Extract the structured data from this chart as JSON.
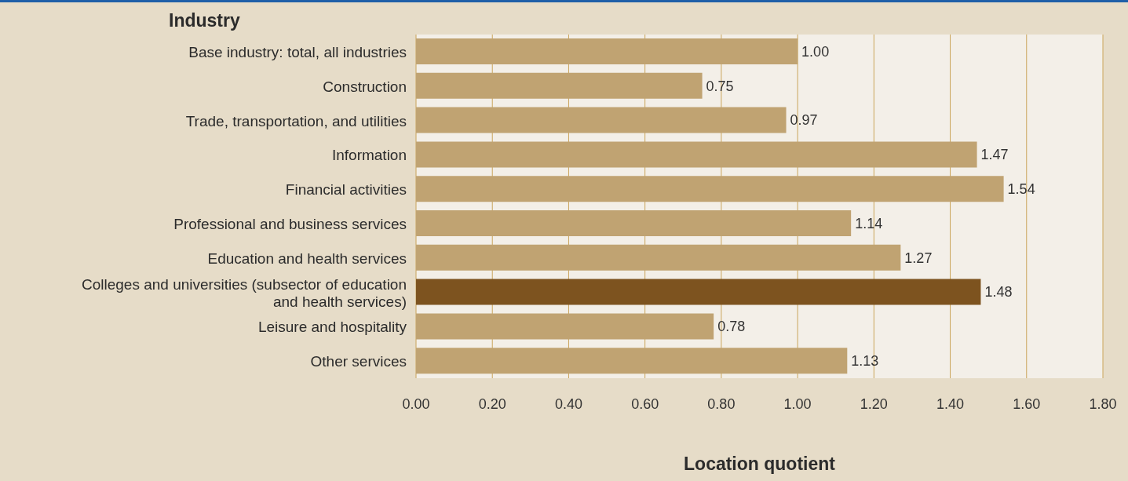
{
  "chart_data": {
    "type": "bar",
    "orientation": "horizontal",
    "ylabel": "Industry",
    "xlabel": "Location quotient",
    "categories": [
      "Base industry: total, all industries",
      "Construction",
      "Trade, transportation, and utilities",
      "Information",
      "Financial activities",
      "Professional and business services",
      "Education and health services",
      "Colleges and universities (subsector of education and health services)",
      "Leisure and hospitality",
      "Other services"
    ],
    "values": [
      1.0,
      0.75,
      0.97,
      1.47,
      1.54,
      1.14,
      1.27,
      1.48,
      0.78,
      1.13
    ],
    "value_labels": [
      "1.00",
      "0.75",
      "0.97",
      "1.47",
      "1.54",
      "1.14",
      "1.27",
      "1.48",
      "0.78",
      "1.13"
    ],
    "colors": [
      "#c0a372",
      "#c0a372",
      "#c0a372",
      "#c0a372",
      "#c0a372",
      "#c0a372",
      "#c0a372",
      "#7d531f",
      "#c0a372",
      "#c0a372"
    ],
    "xlim": [
      0,
      1.8
    ],
    "xticks": [
      {
        "value": 0,
        "label": "0.00"
      },
      {
        "value": 0.2,
        "label": "0.20"
      },
      {
        "value": 0.4,
        "label": "0.40"
      },
      {
        "value": 0.6,
        "label": "0.60"
      },
      {
        "value": 0.8,
        "label": "0.80"
      },
      {
        "value": 1,
        "label": "1.00"
      },
      {
        "value": 1.2,
        "label": "1.20"
      },
      {
        "value": 1.4,
        "label": "1.40"
      },
      {
        "value": 1.6,
        "label": "1.60"
      },
      {
        "value": 1.8,
        "label": "1.80"
      }
    ],
    "grid": "x",
    "legend": false
  }
}
